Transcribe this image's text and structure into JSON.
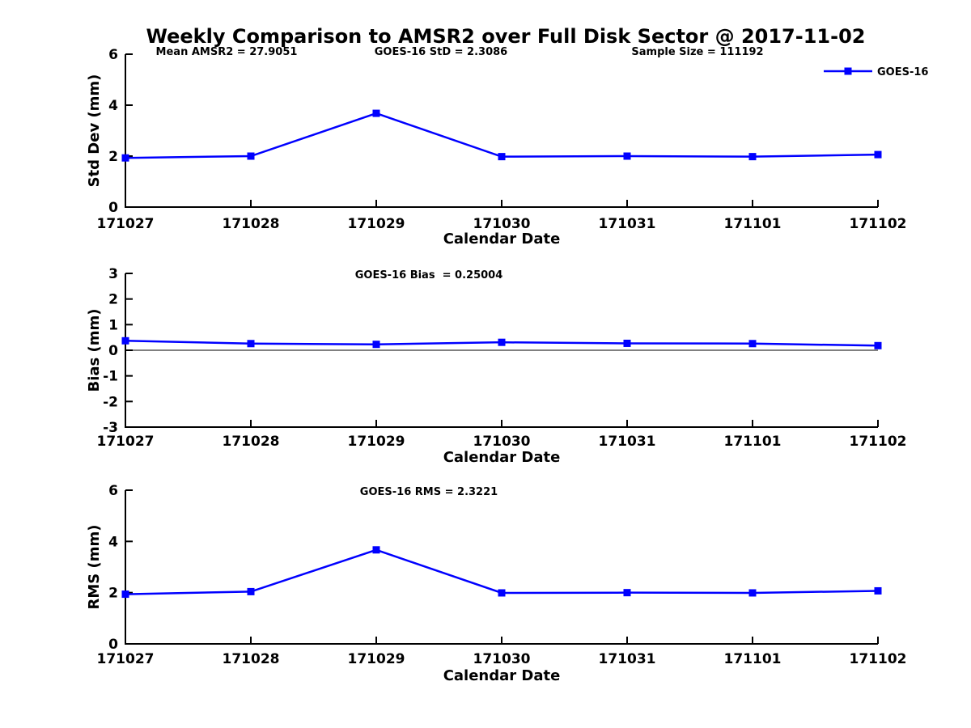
{
  "title": "Weekly Comparison to AMSR2 over Full Disk Sector @ 2017-11-02",
  "legend": {
    "label": "GOES-16",
    "position": "top-right"
  },
  "colors": {
    "series": "#0000FF",
    "axis": "#000000",
    "text": "#000000",
    "background": "#FFFFFF",
    "zero_line": "#000000"
  },
  "x_axis": {
    "label": "Calendar Date",
    "categories": [
      "171027",
      "171028",
      "171029",
      "171030",
      "171031",
      "171101",
      "171102"
    ]
  },
  "chart_data": [
    {
      "type": "line",
      "ylabel": "Std Dev (mm)",
      "xlabel": "Calendar Date",
      "ylim": [
        0,
        6
      ],
      "yticks": [
        0,
        2,
        4,
        6
      ],
      "categories": [
        "171027",
        "171028",
        "171029",
        "171030",
        "171031",
        "171101",
        "171102"
      ],
      "series": [
        {
          "name": "GOES-16",
          "values": [
            1.93,
            2.0,
            3.68,
            1.98,
            2.0,
            1.98,
            2.06
          ]
        }
      ],
      "annotations": [
        "Mean AMSR2 = 27.9051",
        "GOES-16 StD = 2.3086",
        "Sample Size = 111192"
      ],
      "legend": "GOES-16",
      "grid": false
    },
    {
      "type": "line",
      "ylabel": "Bias (mm)",
      "xlabel": "Calendar Date",
      "ylim": [
        -3,
        3
      ],
      "yticks": [
        -3,
        -2,
        -1,
        0,
        1,
        2,
        3
      ],
      "categories": [
        "171027",
        "171028",
        "171029",
        "171030",
        "171031",
        "171101",
        "171102"
      ],
      "series": [
        {
          "name": "GOES-16",
          "values": [
            0.37,
            0.26,
            0.23,
            0.31,
            0.27,
            0.26,
            0.18
          ]
        }
      ],
      "annotations": [
        "GOES-16 Bias  = 0.25004"
      ],
      "zero_line": true,
      "grid": false
    },
    {
      "type": "line",
      "ylabel": "RMS (mm)",
      "xlabel": "Calendar Date",
      "ylim": [
        0,
        6
      ],
      "yticks": [
        0,
        2,
        4,
        6
      ],
      "categories": [
        "171027",
        "171028",
        "171029",
        "171030",
        "171031",
        "171101",
        "171102"
      ],
      "series": [
        {
          "name": "GOES-16",
          "values": [
            1.94,
            2.04,
            3.67,
            1.99,
            2.0,
            1.99,
            2.07
          ]
        }
      ],
      "annotations": [
        "GOES-16 RMS = 2.3221"
      ],
      "grid": false
    }
  ]
}
